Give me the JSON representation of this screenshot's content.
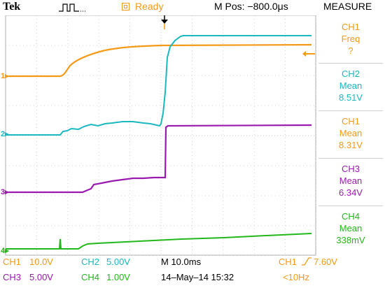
{
  "header": {
    "brand": "Tek",
    "status": "Ready",
    "mpos": "M Pos: −800.0μs",
    "menu_title": "MEASURE"
  },
  "channel_markers": [
    {
      "label": "1",
      "color": "#f39a16"
    },
    {
      "label": "2",
      "color": "#1ab8c0"
    },
    {
      "label": "3",
      "color": "#9a1ab0"
    },
    {
      "label": "4",
      "color": "#22b81a"
    }
  ],
  "measurements": [
    {
      "channel": "CH1",
      "type": "Freq",
      "value": "?",
      "color": "#f39a16"
    },
    {
      "channel": "CH2",
      "type": "Mean",
      "value": "8.51V",
      "color": "#1ab8c0"
    },
    {
      "channel": "CH1",
      "type": "Mean",
      "value": "8.31V",
      "color": "#f39a16"
    },
    {
      "channel": "CH3",
      "type": "Mean",
      "value": "6.34V",
      "color": "#9a1ab0"
    },
    {
      "channel": "CH4",
      "type": "Mean",
      "value": "338mV",
      "color": "#22b81a"
    }
  ],
  "footer": {
    "ch1_label": "CH1",
    "ch1_scale": "10.0V",
    "ch2_label": "CH2",
    "ch2_scale": "5.00V",
    "ch3_label": "CH3",
    "ch3_scale": "5.00V",
    "ch4_label": "CH4",
    "ch4_scale": "1.00V",
    "timebase": "M 10.0ms",
    "date": "14–May–14 15:32",
    "trigger_channel": "CH1",
    "trigger_level": "7.60V",
    "trigger_freq": "<10Hz"
  },
  "colors": {
    "ch1": "#f39a16",
    "ch2": "#1ab8c0",
    "ch3": "#9a1ab0",
    "ch4": "#22b81a",
    "grid": "#c8c8c8"
  }
}
